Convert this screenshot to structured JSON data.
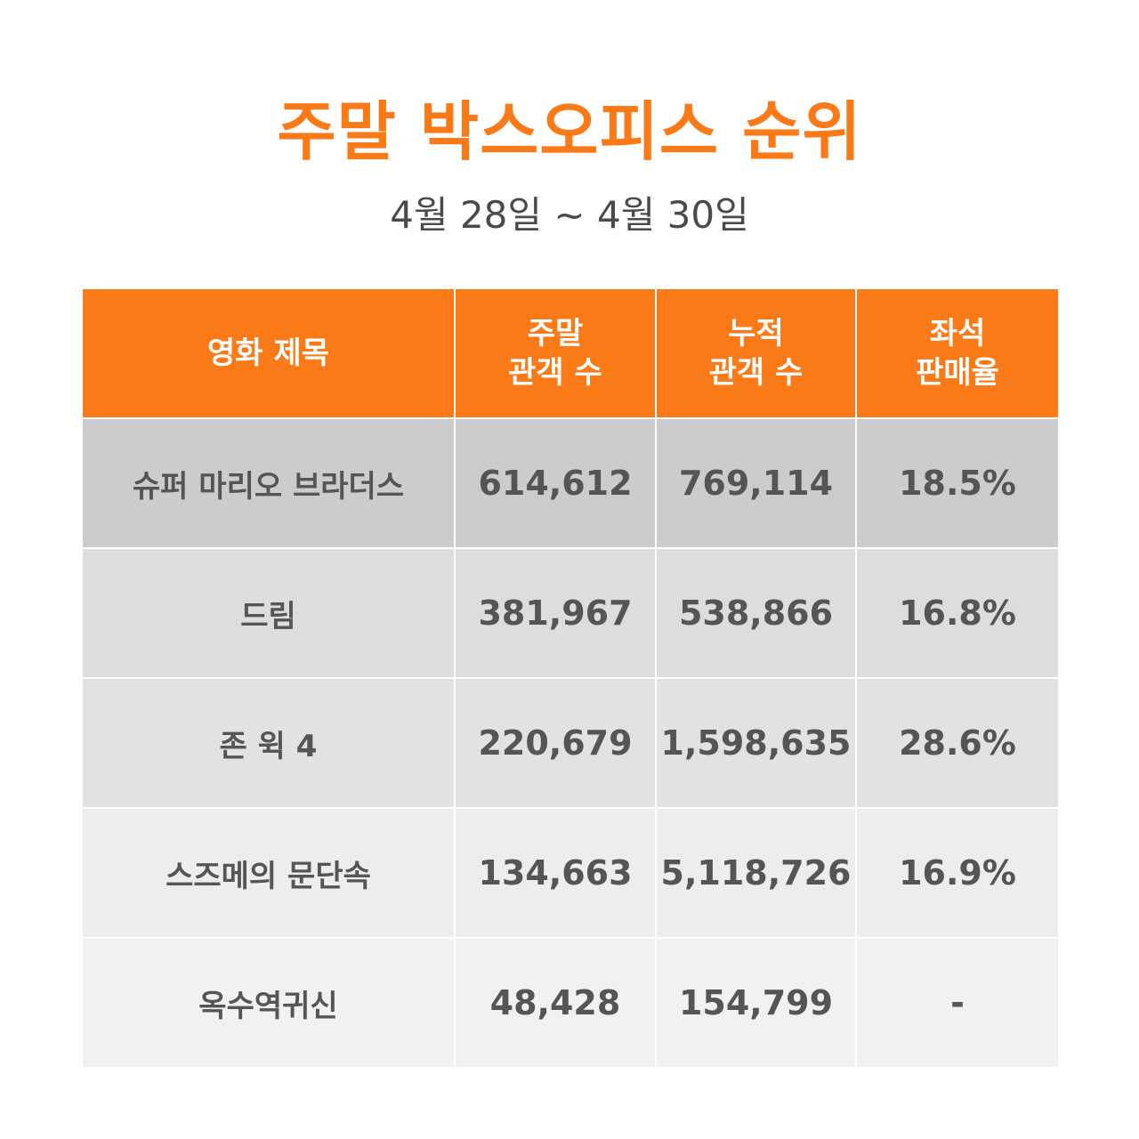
{
  "header": {
    "title": "주말 박스오피스 순위",
    "date_range": "4월 28일 ~ 4월 30일"
  },
  "colors": {
    "accent": "#fb7a18",
    "text": "#555555",
    "row_backgrounds": [
      "#cccccc",
      "#dddddd",
      "#e2e2e2",
      "#ededed",
      "#f1f1f1"
    ]
  },
  "table": {
    "columns": [
      {
        "line1": "영화 제목",
        "line2": ""
      },
      {
        "line1": "주말",
        "line2": "관객 수"
      },
      {
        "line1": "누적",
        "line2": "관객 수"
      },
      {
        "line1": "좌석",
        "line2": "판매율"
      }
    ],
    "rows": [
      {
        "title": "슈퍼 마리오 브라더스",
        "weekend": "614,612",
        "cumulative": "769,114",
        "seat_rate": "18.5%"
      },
      {
        "title": "드림",
        "weekend": "381,967",
        "cumulative": "538,866",
        "seat_rate": "16.8%"
      },
      {
        "title": "존 윅 4",
        "weekend": "220,679",
        "cumulative": "1,598,635",
        "seat_rate": "28.6%"
      },
      {
        "title": "스즈메의 문단속",
        "weekend": "134,663",
        "cumulative": "5,118,726",
        "seat_rate": "16.9%"
      },
      {
        "title": "옥수역귀신",
        "weekend": "48,428",
        "cumulative": "154,799",
        "seat_rate": "-"
      }
    ]
  }
}
